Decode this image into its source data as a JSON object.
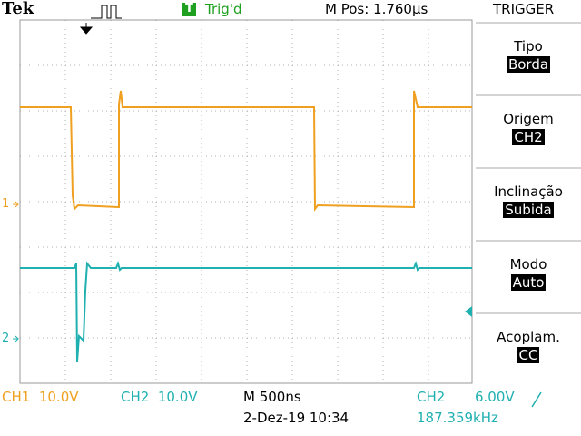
{
  "header": {
    "brand": "Tek",
    "trigger_icon": "T",
    "trigger_status": "Trig'd",
    "position": "M Pos: 1.760µs",
    "menu_title": "TRIGGER"
  },
  "menu": [
    {
      "label": "Tipo",
      "value": "Borda"
    },
    {
      "label": "Origem",
      "value": "CH2"
    },
    {
      "label": "Inclinação",
      "value": "Subida"
    },
    {
      "label": "Modo",
      "value": "Auto"
    },
    {
      "label": "Acoplam.",
      "value": "CC"
    }
  ],
  "markers": {
    "ch1": "1",
    "ch2": "2"
  },
  "footer": {
    "ch1": "CH1  10.0V",
    "ch2": "CH2  10.0V",
    "timebase": "M 500ns",
    "datetime": "2-Dez-19 10:34",
    "trigger_source": "CH2",
    "trigger_level": "6.00V",
    "frequency": "187.359kHz"
  }
}
